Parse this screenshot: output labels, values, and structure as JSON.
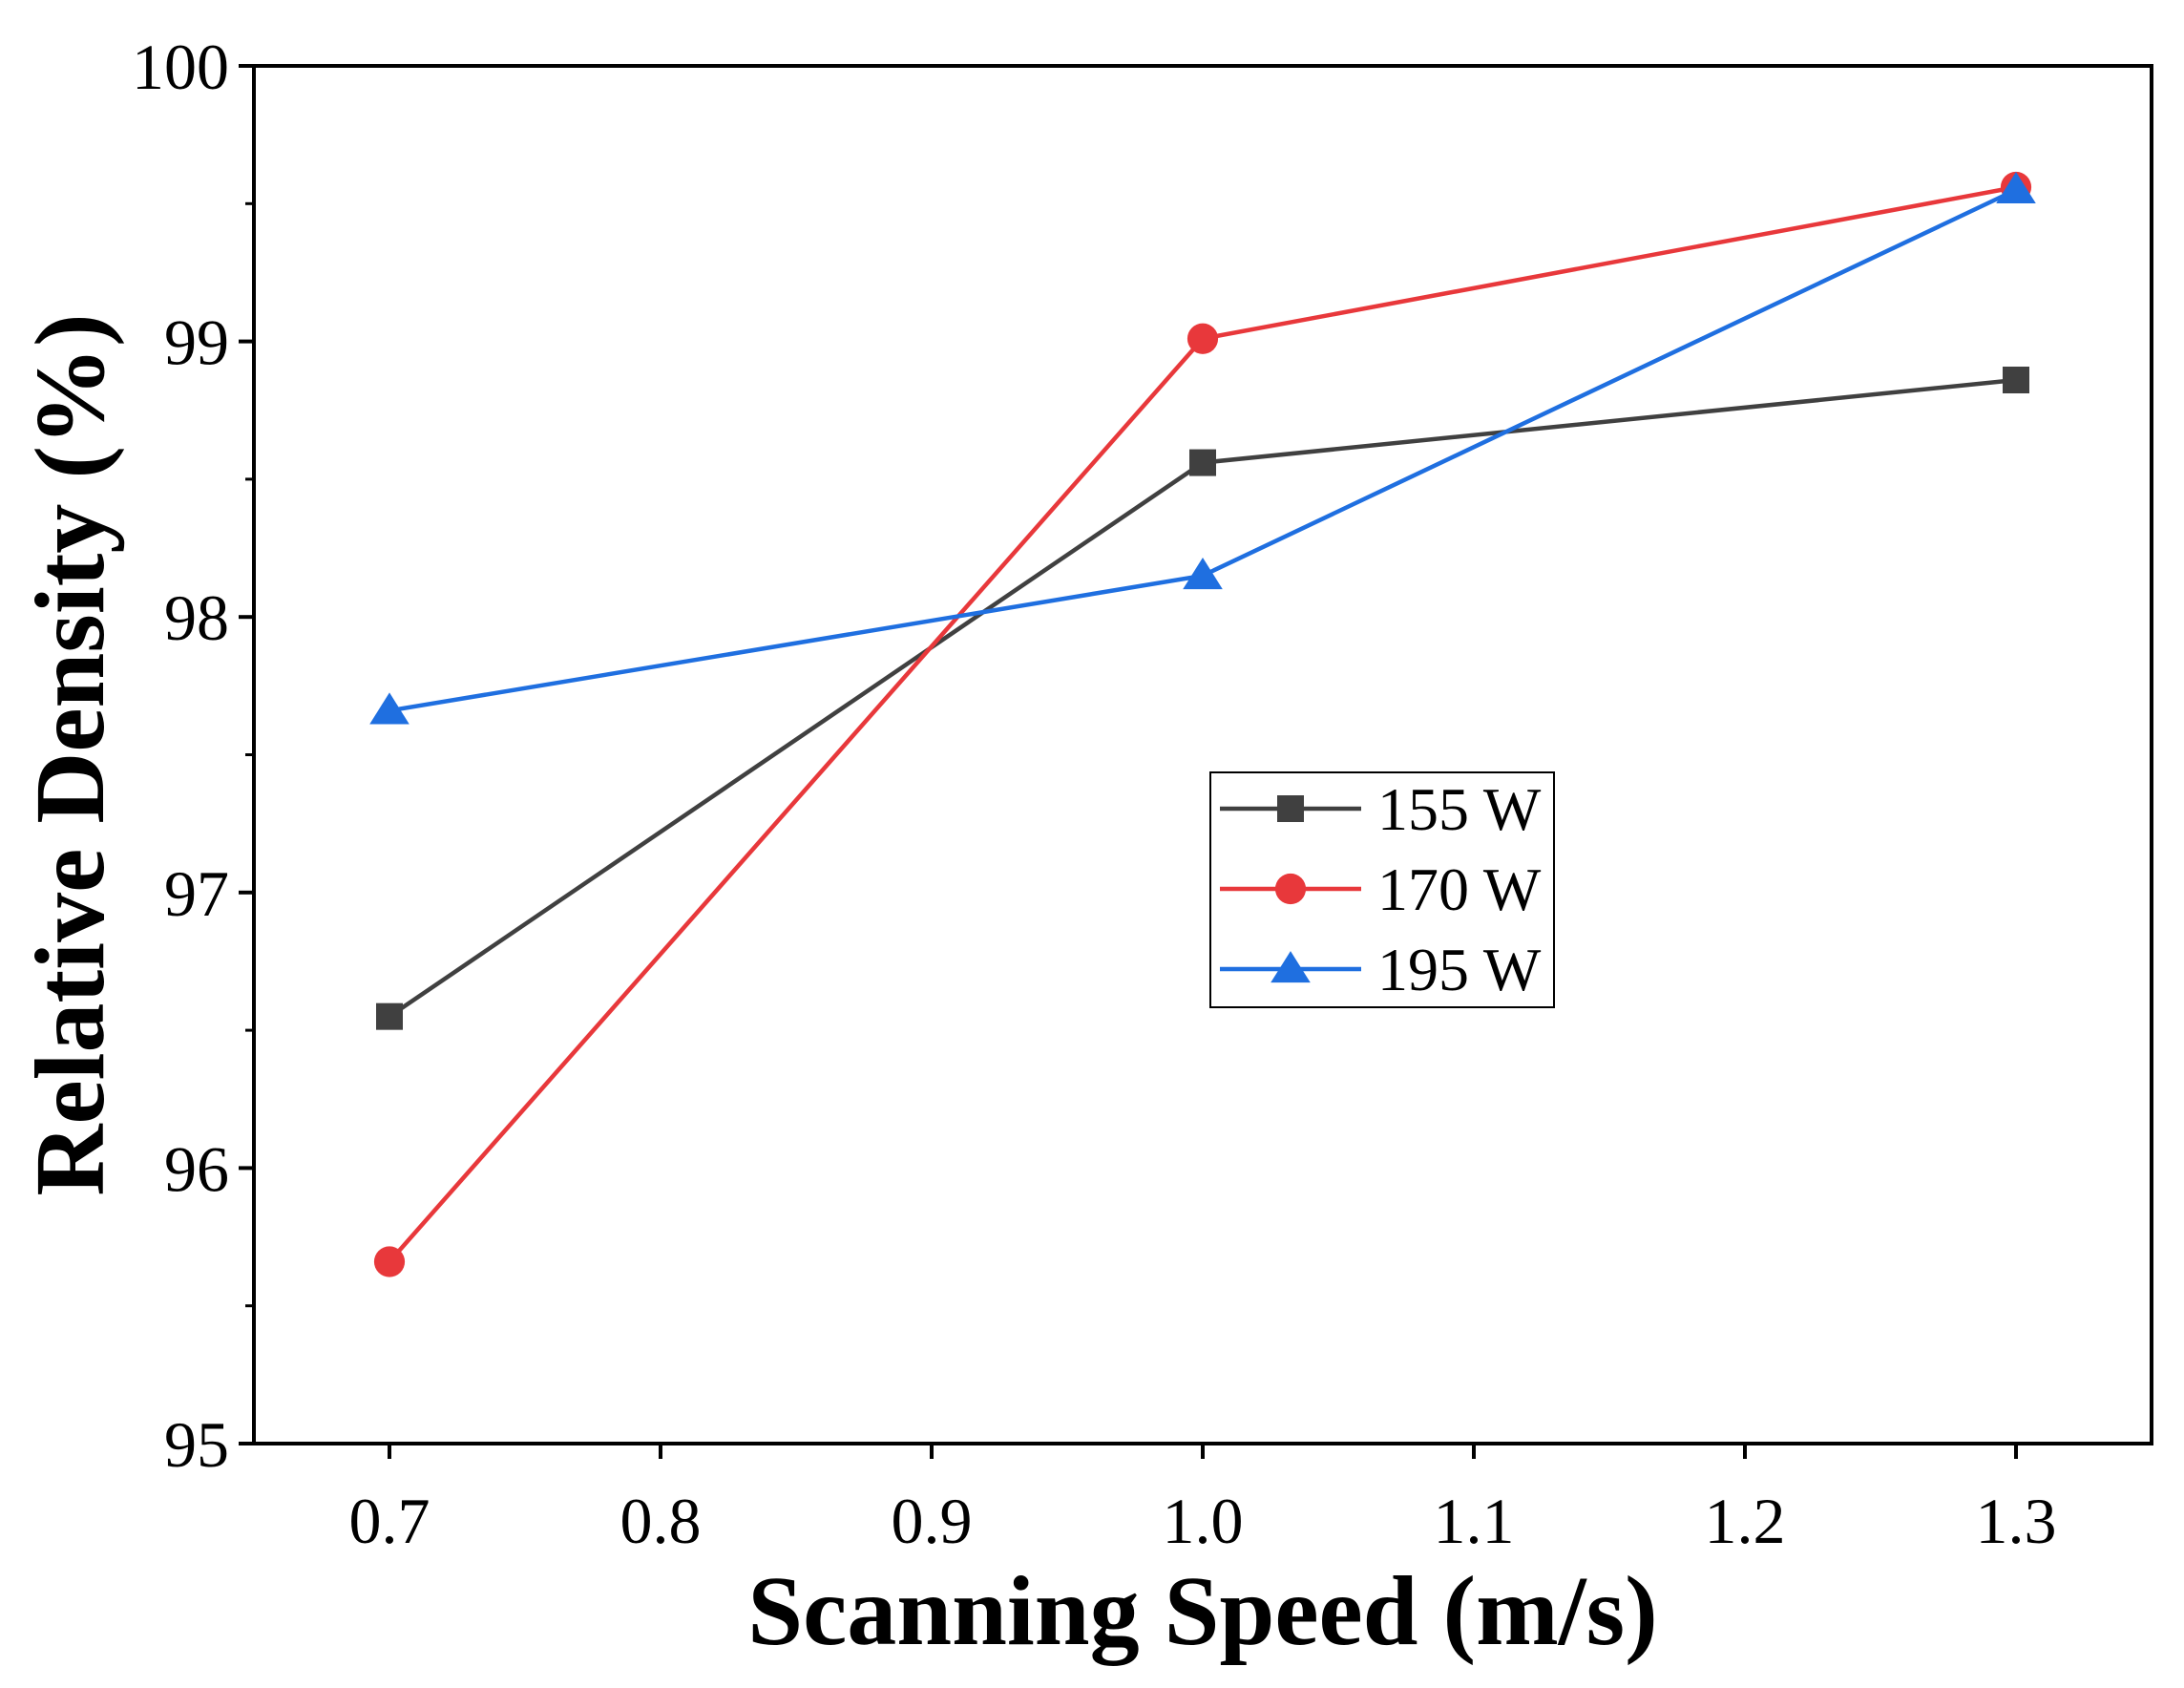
{
  "chart_data": {
    "type": "line",
    "title": "",
    "xlabel": "Scanning Speed (m/s)",
    "ylabel": "Relative Density (%)",
    "xlim": [
      0.65,
      1.35
    ],
    "ylim": [
      95,
      100
    ],
    "x_ticks": [
      0.7,
      0.8,
      0.9,
      1.0,
      1.1,
      1.2,
      1.3
    ],
    "x_tick_labels": [
      "0.7",
      "0.8",
      "0.9",
      "1.0",
      "1.1",
      "1.2",
      "1.3"
    ],
    "y_ticks": [
      95,
      96,
      97,
      98,
      99,
      100
    ],
    "y_tick_labels": [
      "95",
      "96",
      "97",
      "98",
      "99",
      "100"
    ],
    "grid": false,
    "legend_position": "center-right",
    "x": [
      0.7,
      1.0,
      1.3
    ],
    "series": [
      {
        "name": "155 W",
        "values": [
          96.55,
          98.56,
          98.86
        ],
        "color": "#404040",
        "marker": "square"
      },
      {
        "name": "170 W",
        "values": [
          95.66,
          99.01,
          99.56
        ],
        "color": "#e8383b",
        "marker": "circle"
      },
      {
        "name": "195 W",
        "values": [
          97.66,
          98.15,
          99.55
        ],
        "color": "#1f6fe0",
        "marker": "triangle"
      }
    ]
  }
}
